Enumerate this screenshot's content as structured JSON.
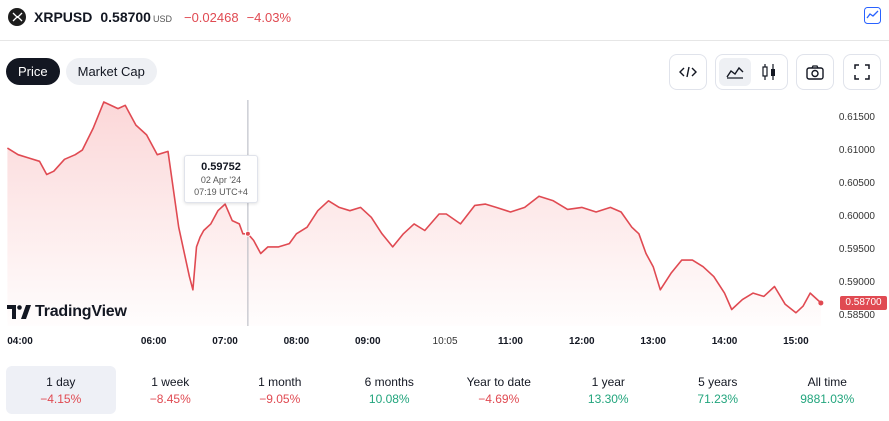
{
  "header": {
    "symbol": "XRPUSD",
    "price": "0.58700",
    "currency": "USD",
    "change": "−0.02468",
    "change_pct": "−4.03%"
  },
  "tabs": [
    {
      "label": "Price",
      "active": true
    },
    {
      "label": "Market Cap",
      "active": false
    }
  ],
  "tooltip": {
    "value": "0.59752",
    "date": "02 Apr '24",
    "time": "07:19 UTC+4"
  },
  "branding": {
    "label": "TradingView"
  },
  "last_price_label": "0.58700",
  "colors": {
    "line": "#e04a52",
    "fill_top": "#fbd5d6",
    "positive": "#22a57d",
    "negative": "#e04a52"
  },
  "chart_data": {
    "type": "area",
    "x_ticks": [
      {
        "label": "04:00",
        "bold": true
      },
      {
        "label": "06:00",
        "bold": true
      },
      {
        "label": "07:00",
        "bold": true
      },
      {
        "label": "08:00",
        "bold": true
      },
      {
        "label": "09:00",
        "bold": true
      },
      {
        "label": "10:05",
        "bold": false
      },
      {
        "label": "11:00",
        "bold": true
      },
      {
        "label": "12:00",
        "bold": true
      },
      {
        "label": "13:00",
        "bold": true
      },
      {
        "label": "14:00",
        "bold": true
      },
      {
        "label": "15:00",
        "bold": true
      }
    ],
    "x_tick_hours": [
      4,
      6,
      7,
      8,
      9,
      10.083,
      11,
      12,
      13,
      14,
      15
    ],
    "y_ticks": [
      "0.61500",
      "0.61000",
      "0.60500",
      "0.60000",
      "0.59500",
      "0.59000",
      "0.58500"
    ],
    "y_tick_values": [
      0.615,
      0.61,
      0.605,
      0.6,
      0.595,
      0.59,
      0.585
    ],
    "ylim": [
      0.5835,
      0.6175
    ],
    "xlim": [
      3.93,
      15.45
    ],
    "crosshair_hour": 7.32,
    "series": [
      {
        "x": [
          3.95,
          4.1,
          4.25,
          4.4,
          4.5,
          4.6,
          4.75,
          4.9,
          5.0,
          5.15,
          5.3,
          5.5,
          5.6,
          5.75,
          5.9,
          6.05,
          6.2,
          6.35,
          6.5,
          6.55,
          6.6,
          6.65,
          6.7,
          6.8,
          6.9,
          7.0,
          7.1,
          7.2,
          7.25,
          7.32,
          7.4,
          7.5,
          7.6,
          7.75,
          7.9,
          8.0,
          8.15,
          8.3,
          8.45,
          8.6,
          8.75,
          8.9,
          9.05,
          9.2,
          9.35,
          9.5,
          9.65,
          9.8,
          10.0,
          10.1,
          10.3,
          10.5,
          10.65,
          10.8,
          11.0,
          11.2,
          11.4,
          11.6,
          11.8,
          12.0,
          12.2,
          12.4,
          12.55,
          12.7,
          12.8,
          12.9,
          13.0,
          13.1,
          13.25,
          13.4,
          13.55,
          13.7,
          13.85,
          14.0,
          14.1,
          14.25,
          14.4,
          14.55,
          14.7,
          14.85,
          15.0,
          15.1,
          15.2,
          15.35
        ],
        "values": [
          0.6105,
          0.6095,
          0.609,
          0.6085,
          0.6065,
          0.607,
          0.6088,
          0.6095,
          0.6102,
          0.6135,
          0.6175,
          0.6165,
          0.617,
          0.614,
          0.6125,
          0.6095,
          0.61,
          0.5985,
          0.591,
          0.589,
          0.5955,
          0.597,
          0.598,
          0.599,
          0.601,
          0.602,
          0.5995,
          0.599,
          0.5975,
          0.5975,
          0.5965,
          0.5945,
          0.5955,
          0.5955,
          0.596,
          0.5975,
          0.5985,
          0.601,
          0.6025,
          0.6015,
          0.601,
          0.6015,
          0.6,
          0.5975,
          0.5955,
          0.5975,
          0.599,
          0.598,
          0.6005,
          0.6005,
          0.599,
          0.6018,
          0.602,
          0.6015,
          0.6008,
          0.6015,
          0.6032,
          0.6025,
          0.6012,
          0.6015,
          0.6008,
          0.6015,
          0.6008,
          0.5985,
          0.5975,
          0.5945,
          0.5925,
          0.589,
          0.5915,
          0.5935,
          0.5935,
          0.5925,
          0.591,
          0.5885,
          0.586,
          0.5875,
          0.5885,
          0.588,
          0.5895,
          0.5868,
          0.5855,
          0.5865,
          0.5885,
          0.587
        ]
      }
    ]
  },
  "ranges": [
    {
      "label": "1 day",
      "pct": "−4.15%",
      "dir": "neg",
      "active": true
    },
    {
      "label": "1 week",
      "pct": "−8.45%",
      "dir": "neg",
      "active": false
    },
    {
      "label": "1 month",
      "pct": "−9.05%",
      "dir": "neg",
      "active": false
    },
    {
      "label": "6 months",
      "pct": "10.08%",
      "dir": "pos",
      "active": false
    },
    {
      "label": "Year to date",
      "pct": "−4.69%",
      "dir": "neg",
      "active": false
    },
    {
      "label": "1 year",
      "pct": "13.30%",
      "dir": "pos",
      "active": false
    },
    {
      "label": "5 years",
      "pct": "71.23%",
      "dir": "pos",
      "active": false
    },
    {
      "label": "All time",
      "pct": "9881.03%",
      "dir": "pos",
      "active": false
    }
  ]
}
